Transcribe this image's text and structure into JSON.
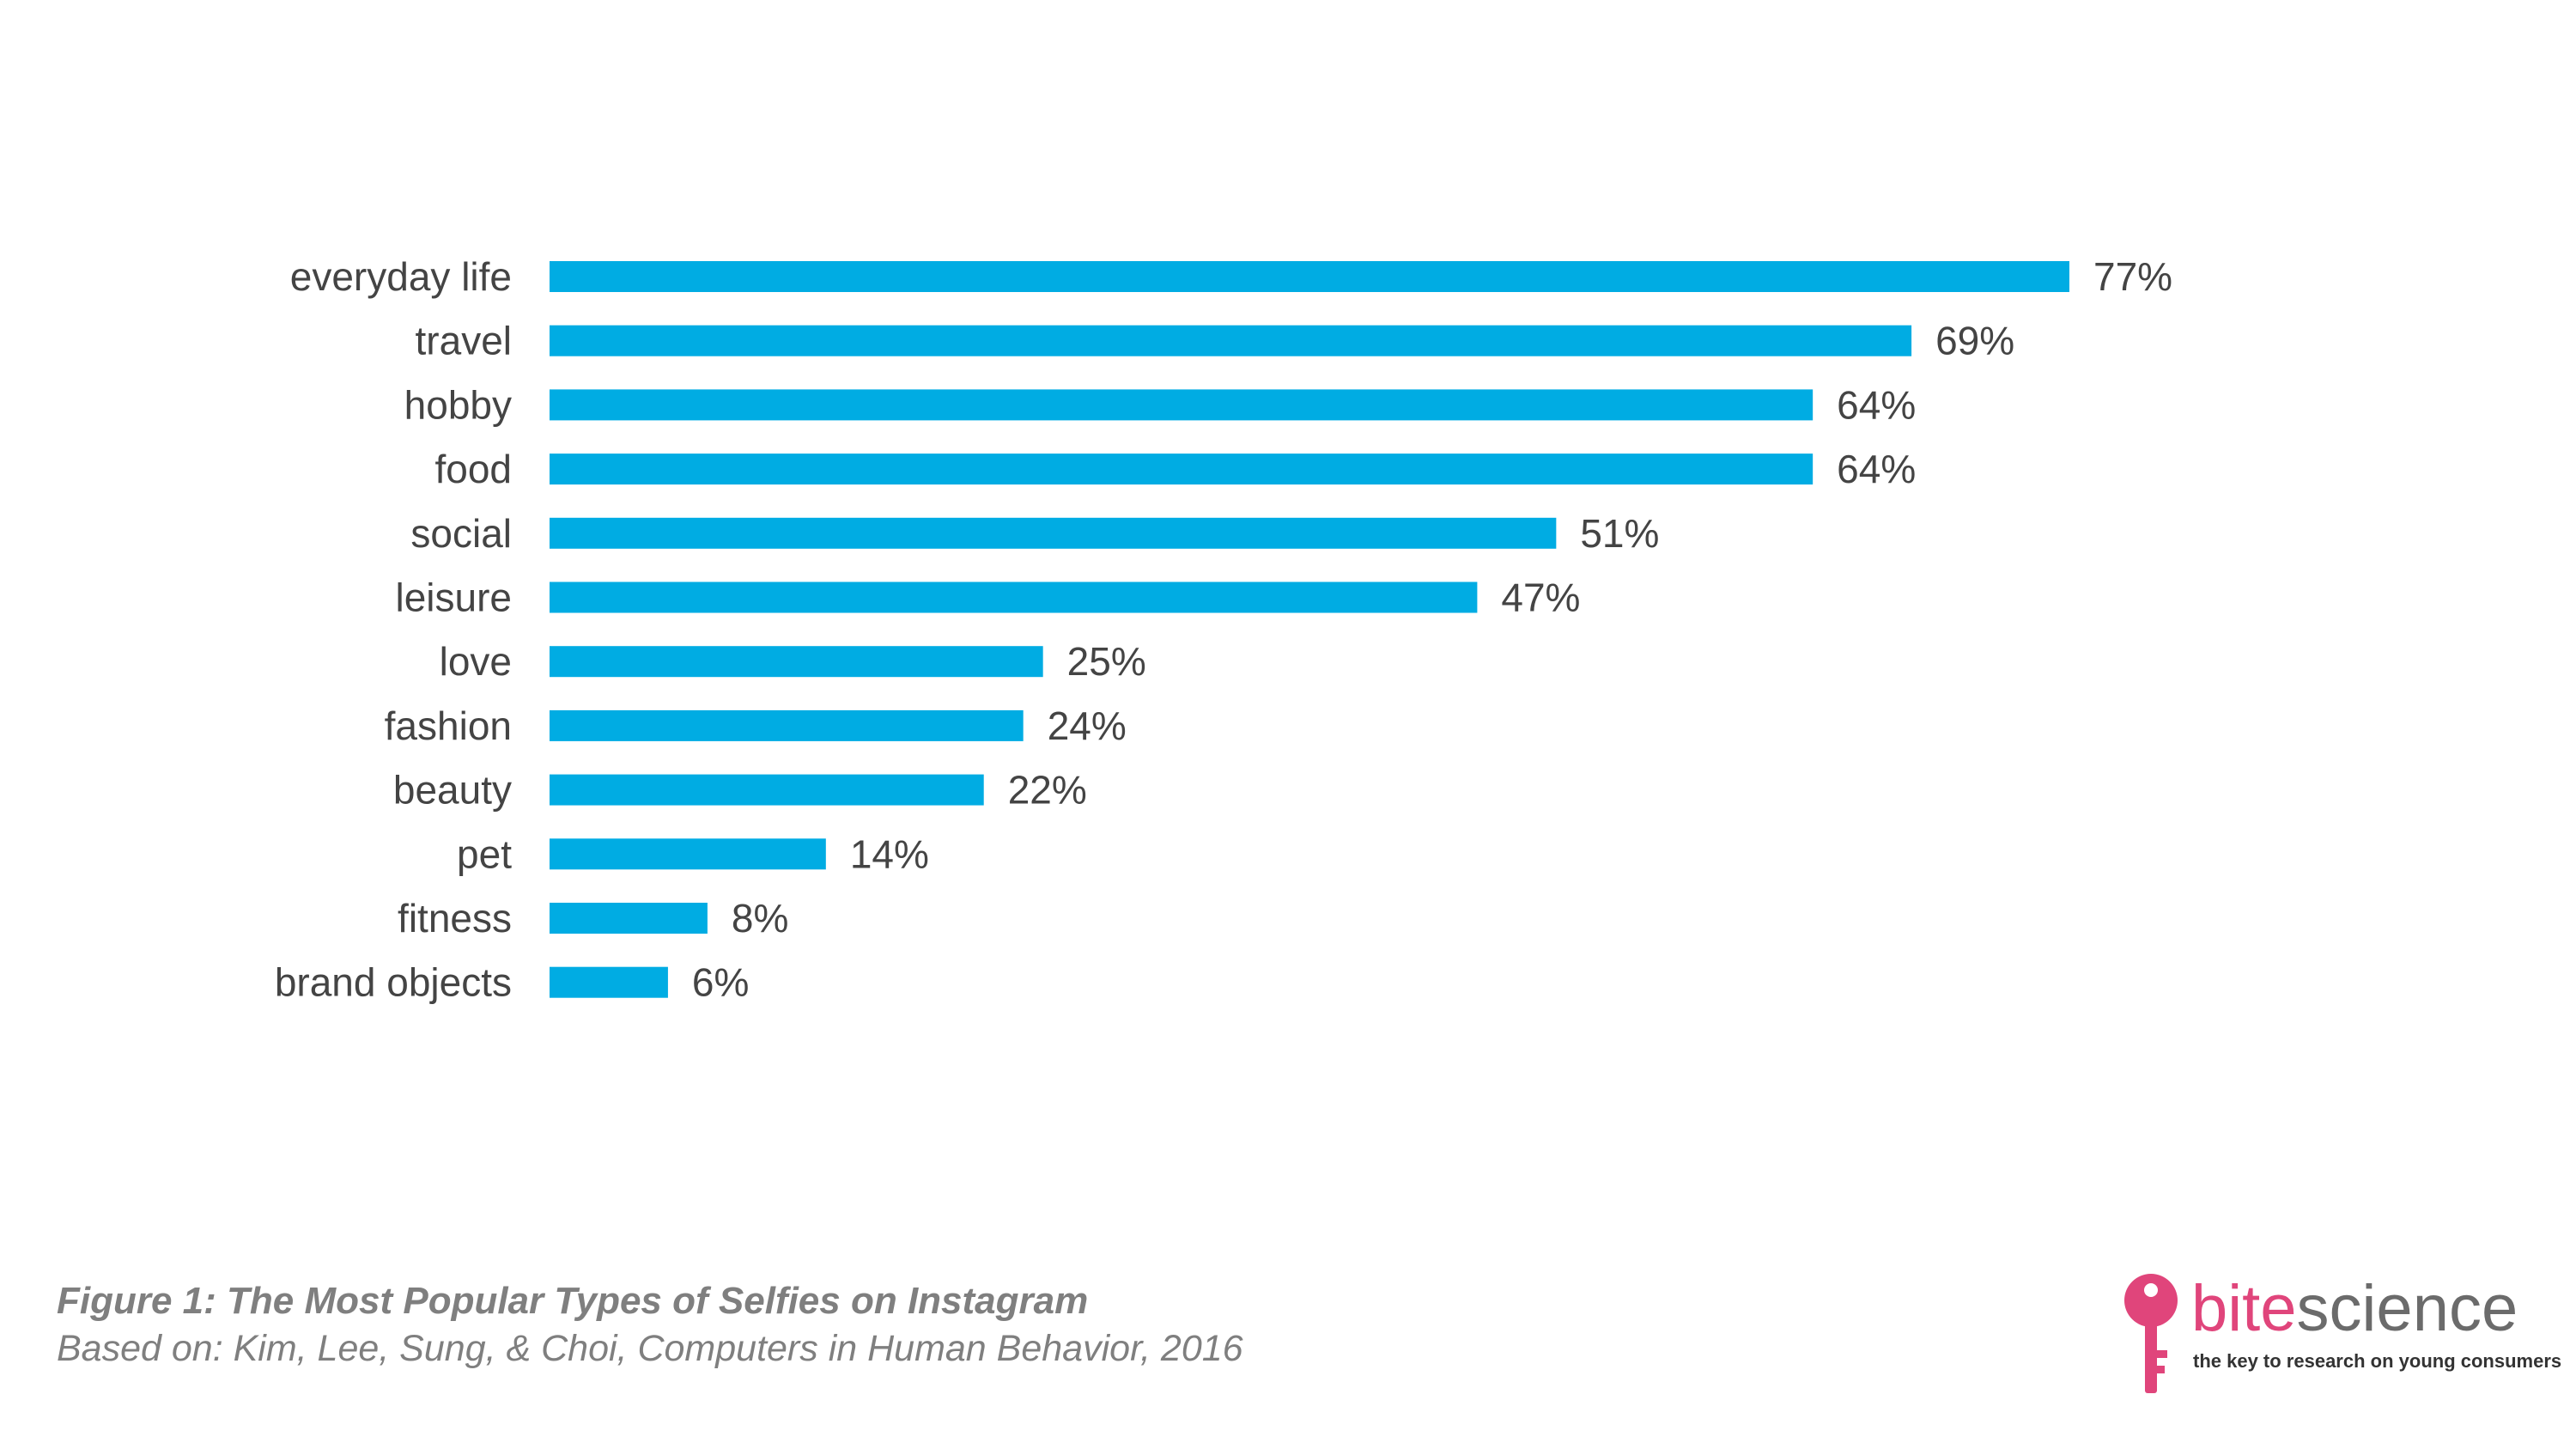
{
  "chart_data": {
    "type": "bar",
    "orientation": "horizontal",
    "categories": [
      "everyday life",
      "travel",
      "hobby",
      "food",
      "social",
      "leisure",
      "love",
      "fashion",
      "beauty",
      "pet",
      "fitness",
      "brand objects"
    ],
    "values": [
      77,
      69,
      64,
      64,
      51,
      47,
      25,
      24,
      22,
      14,
      8,
      6
    ],
    "value_labels": [
      "77%",
      "69%",
      "64%",
      "64%",
      "51%",
      "47%",
      "25%",
      "24%",
      "22%",
      "14%",
      "8%",
      "6%"
    ],
    "xlim": [
      0,
      77
    ],
    "unit": "%",
    "grid": false,
    "bar_color": "#00ace3"
  },
  "caption": {
    "title": "Figure 1: The Most Popular Types of Selfies on Instagram",
    "source": "Based on: Kim, Lee, Sung, & Choi, Computers in Human Behavior, 2016"
  },
  "logo": {
    "icon": "key-icon",
    "brand_part1": "bite",
    "brand_part2": "science",
    "tagline": "the key to research on young consumers",
    "colors": {
      "accent": "#e0457b",
      "text": "#6b6b6b"
    }
  }
}
